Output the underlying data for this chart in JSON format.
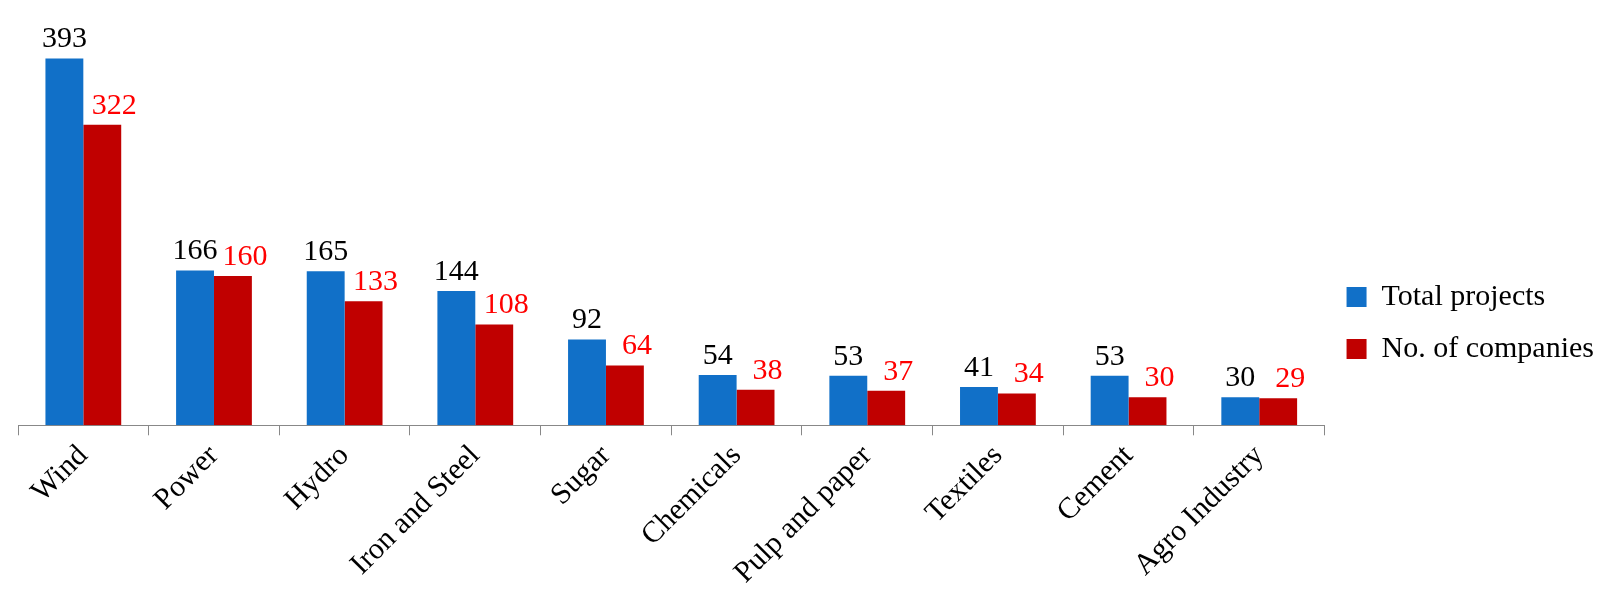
{
  "chart_data": {
    "type": "bar",
    "categories": [
      "Wind",
      "Power",
      "Hydro",
      "Iron and Steel",
      "Sugar",
      "Chemicals",
      "Pulp and paper",
      "Textiles",
      "Cement",
      "Agro Industry"
    ],
    "series": [
      {
        "name": "Total projects",
        "color": "#1170c8",
        "values": [
          393,
          166,
          165,
          144,
          92,
          54,
          53,
          41,
          53,
          30
        ]
      },
      {
        "name": "No. of companies",
        "color": "#c00000",
        "values": [
          322,
          160,
          133,
          108,
          64,
          38,
          37,
          34,
          30,
          29
        ]
      }
    ],
    "data_labels": true,
    "legend": "right",
    "grid": false
  }
}
